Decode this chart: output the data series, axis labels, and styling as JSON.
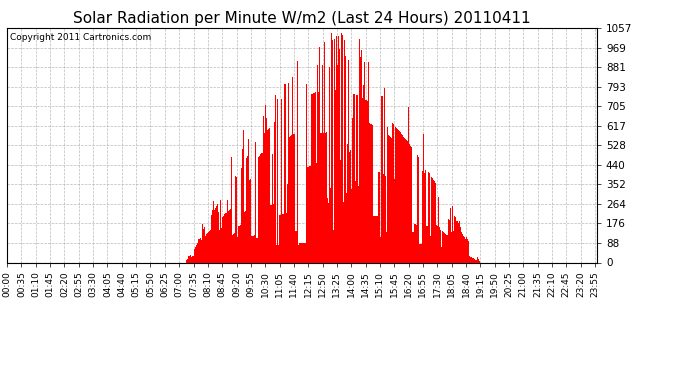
{
  "title": "Solar Radiation per Minute W/m2 (Last 24 Hours) 20110411",
  "copyright": "Copyright 2011 Cartronics.com",
  "ymax": 1057.0,
  "ymin": 0.0,
  "yticks": [
    0.0,
    88.1,
    176.2,
    264.2,
    352.3,
    440.4,
    528.5,
    616.6,
    704.7,
    792.8,
    880.8,
    968.9,
    1057.0
  ],
  "bar_color": "#ff0000",
  "background_color": "#ffffff",
  "grid_color": "#aaaaaa",
  "dashed_line_color": "#ff0000",
  "title_fontsize": 11,
  "copyright_fontsize": 6.5,
  "tick_fontsize": 6.5,
  "ytick_fontsize": 7.5
}
